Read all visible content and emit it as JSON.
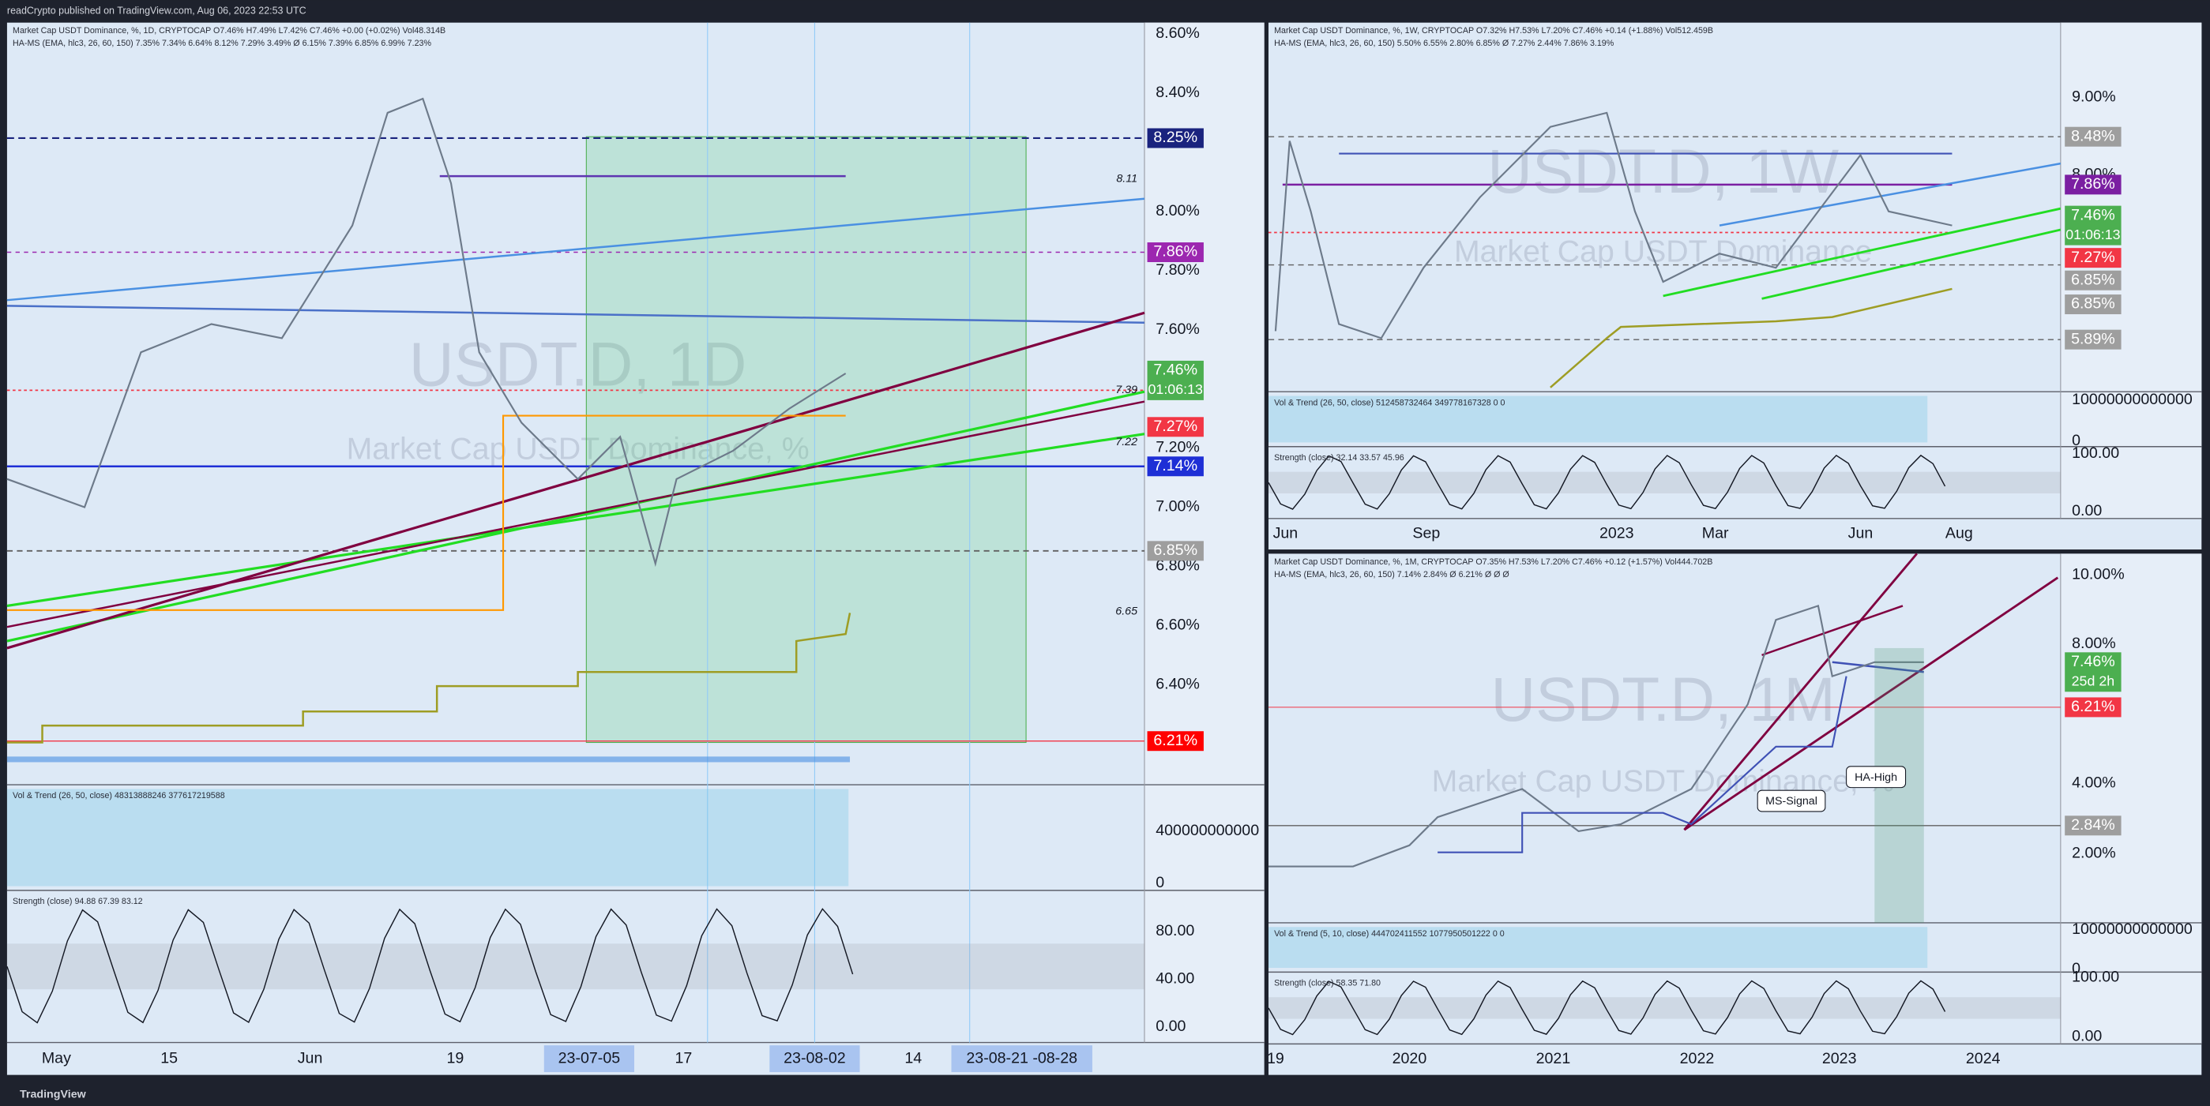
{
  "header": "readCrypto published on TradingView.com, Aug 06, 2023 22:53 UTC",
  "footer": "TradingView",
  "panels": [
    {
      "legend": [
        "Market Cap USDT Dominance, %, 1D, CRYPTOCAP  O7.46%  H7.49%  L7.42%  C7.46%  +0.00 (+0.02%)  Vol48.314B",
        "HA-MS (EMA, hlc3, 26, 60, 150)  7.35%  7.34%  6.64%  8.12%  7.29%  3.49%  Ø  6.15%  7.39%  6.85%  6.99%  7.23%"
      ],
      "watermark": [
        "USDT.D, 1D",
        "Market Cap USDT Dominance, %"
      ],
      "price_axis": [
        "8.60%",
        "8.40%",
        "8.00%",
        "7.80%",
        "7.60%",
        "7.20%",
        "7.00%",
        "6.80%",
        "6.60%",
        "6.40%"
      ],
      "badges": [
        {
          "text": "8.25%",
          "color": "#1a237e"
        },
        {
          "text": "7.86%",
          "color": "#9c27b0"
        },
        {
          "text": "7.46%",
          "time": "01:06:13",
          "color": "#4caf50"
        },
        {
          "text": "7.27%",
          "color": "#f23645"
        },
        {
          "text": "7.14%",
          "color": "#1e2fd6"
        },
        {
          "text": "6.85%",
          "color": "#9e9e9e"
        },
        {
          "text": "6.21%",
          "color": "#ff0000"
        }
      ],
      "levels": [
        "8.11",
        "7.39",
        "7.22",
        "6.65"
      ],
      "volume": {
        "legend": "Vol & Trend (26, 50, close)  48313888246  377617219588",
        "axis": [
          "400000000000",
          "0"
        ]
      },
      "strength": {
        "legend": "Strength (close)  94.88  67.39  83.12",
        "axis": [
          "80.00",
          "40.00",
          "0.00"
        ]
      },
      "time_axis": [
        "May",
        "15",
        "Jun",
        "19",
        "23-07-05",
        "17",
        "23-08-02",
        "14",
        "23-08-21   -08-28"
      ]
    },
    {
      "legend": [
        "Market Cap USDT Dominance, %, 1W, CRYPTOCAP  O7.32%  H7.53%  L7.20%  C7.46%  +0.14 (+1.88%)  Vol512.459B",
        "HA-MS (EMA, hlc3, 26, 60, 150)  5.50%  6.55%  2.80%  6.85%  Ø  7.27%  2.44%  7.86%  3.19%"
      ],
      "watermark": [
        "USDT.D, 1W",
        "Market Cap USDT Dominance"
      ],
      "price_axis": [
        "9.00%",
        "8.00%"
      ],
      "badges": [
        {
          "text": "8.48%",
          "color": "#9e9e9e"
        },
        {
          "text": "7.86%",
          "color": "#7b1fa2"
        },
        {
          "text": "7.46%",
          "time": "01:06:13",
          "color": "#4caf50"
        },
        {
          "text": "7.27%",
          "color": "#f23645"
        },
        {
          "text": "6.85%",
          "color": "#9e9e9e"
        },
        {
          "text": "6.85%",
          "color": "#9e9e9e"
        },
        {
          "text": "5.89%",
          "color": "#9e9e9e"
        }
      ],
      "levels": [],
      "volume": {
        "legend": "Vol & Trend (26, 50, close)  512458732464  349778167328  0  0",
        "axis": [
          "10000000000000",
          "0"
        ]
      },
      "strength": {
        "legend": "Strength (close)  32.14  33.57  45.96",
        "axis": [
          "100.00",
          "0.00"
        ]
      },
      "time_axis": [
        "Jun",
        "Sep",
        "2023",
        "Mar",
        "Jun",
        "Aug"
      ]
    },
    {
      "legend": [
        "Market Cap USDT Dominance, %, 1M, CRYPTOCAP  O7.35%  H7.53%  L7.20%  C7.46%  +0.12 (+1.57%)  Vol444.702B",
        "HA-MS (EMA, hlc3, 26, 60, 150)  7.14%  2.84%  Ø  6.21%  Ø  Ø  Ø"
      ],
      "watermark": [
        "USDT.D, 1M",
        "Market Cap USDT Dominance, %"
      ],
      "price_axis": [
        "10.00%",
        "8.00%",
        "4.00%",
        "2.00%"
      ],
      "badges": [
        {
          "text": "7.46%",
          "time": "25d 2h",
          "color": "#4caf50"
        },
        {
          "text": "6.21%",
          "color": "#f23645"
        },
        {
          "text": "2.84%",
          "color": "#9e9e9e"
        }
      ],
      "levels": [],
      "annotations": [
        "HA-High",
        "MS-Signal"
      ],
      "volume": {
        "legend": "Vol & Trend (5, 10, close)  444702411552  1077950501222  0  0",
        "axis": [
          "10000000000000",
          "0"
        ]
      },
      "strength": {
        "legend": "Strength (close)  58.35  71.80",
        "axis": [
          "100.00",
          "0.00"
        ]
      },
      "time_axis": [
        "19",
        "2020",
        "2021",
        "2022",
        "2023",
        "2024"
      ]
    }
  ]
}
